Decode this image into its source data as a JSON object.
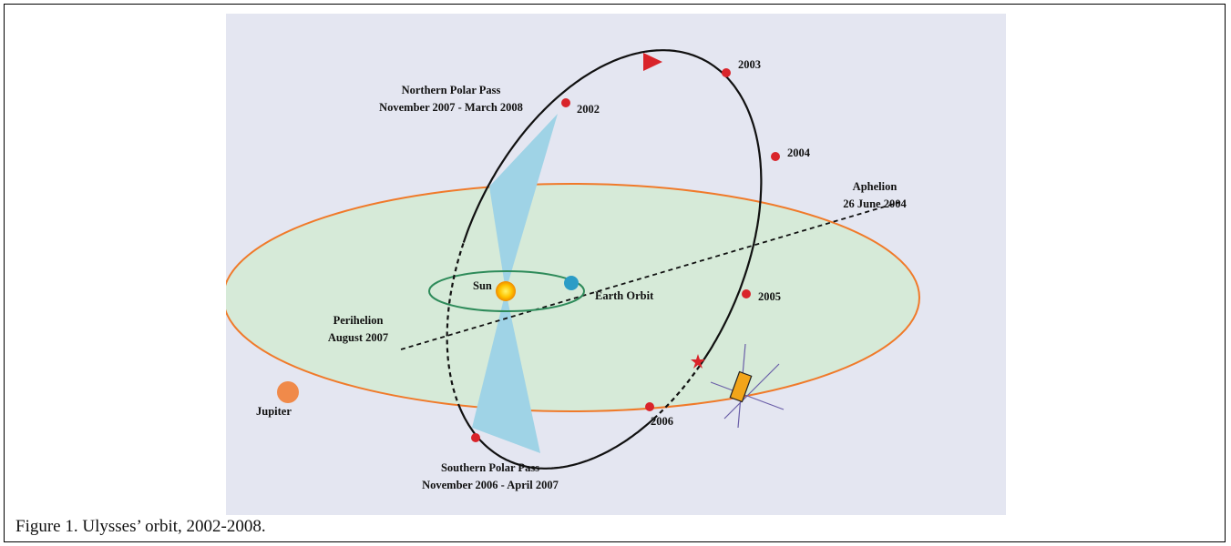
{
  "figure": {
    "caption": "Figure 1. Ulysses’ orbit, 2002-2008.",
    "labels": {
      "northern_pass": "Northern Polar Pass",
      "northern_dates": "November 2007 - March 2008",
      "southern_pass": "Southern Polar Pass",
      "southern_dates": "November 2006 - April 2007",
      "aphelion": "Aphelion",
      "aphelion_date": "26 June 2004",
      "perihelion": "Perihelion",
      "perihelion_date": "August 2007",
      "sun": "Sun",
      "earth_orbit": "Earth Orbit",
      "jupiter": "Jupiter"
    },
    "years": [
      "2002",
      "2003",
      "2004",
      "2005",
      "2006"
    ]
  }
}
